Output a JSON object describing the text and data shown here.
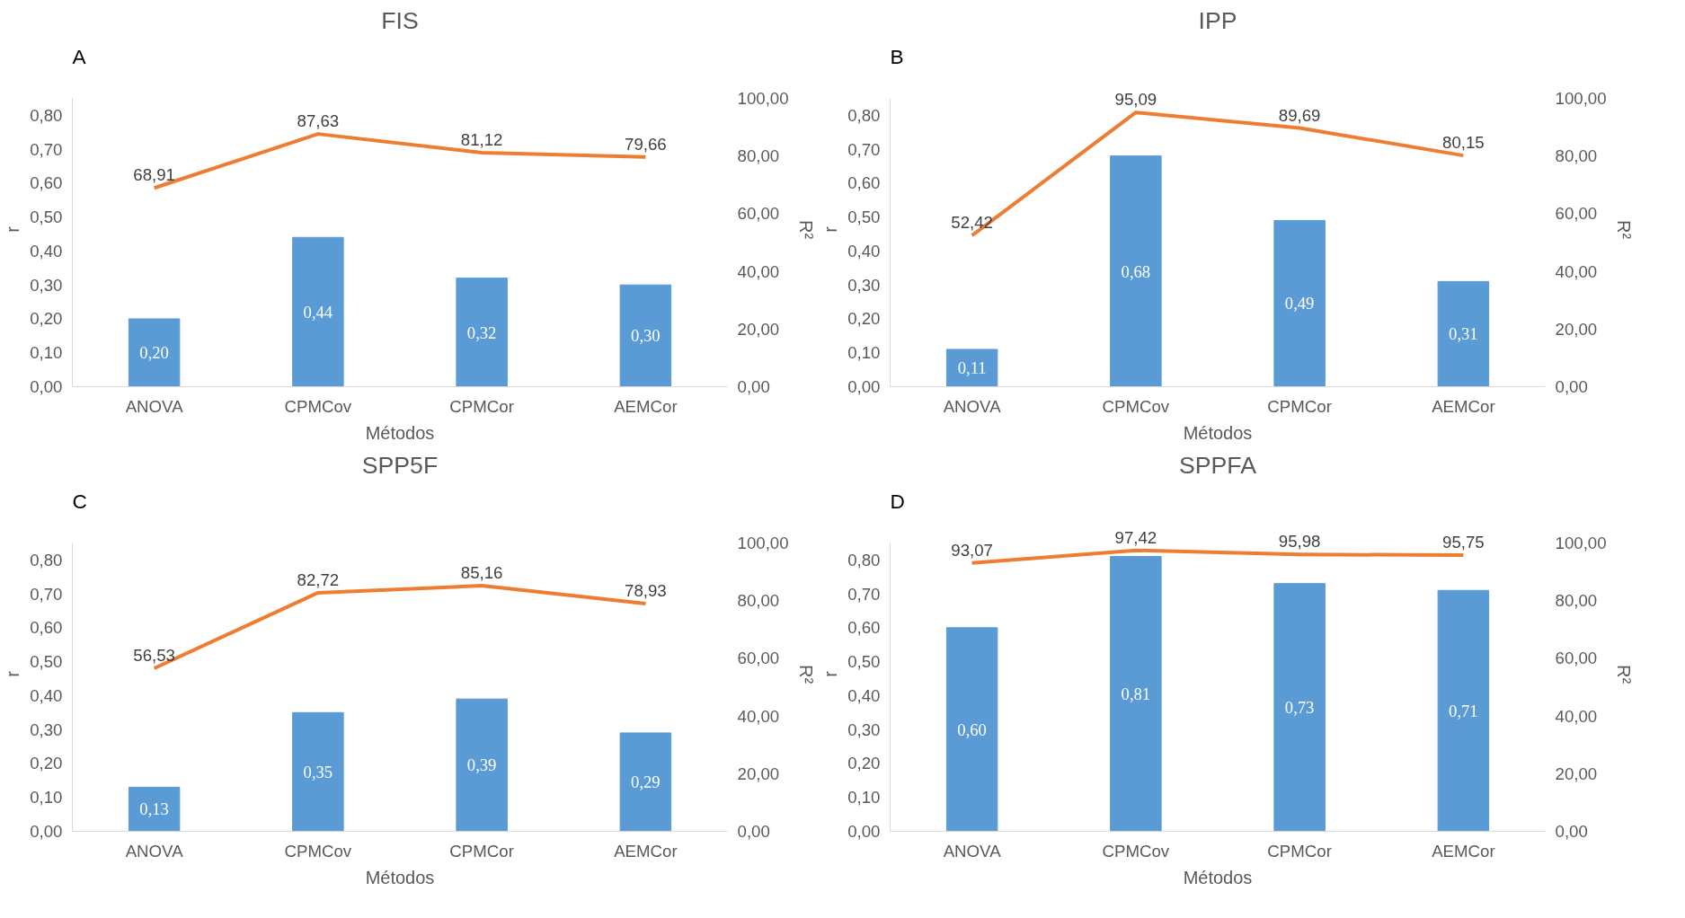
{
  "chart_data": [
    {
      "type": "bar",
      "title": "FIS",
      "annotations": [
        "A"
      ],
      "xlabel": "Métodos",
      "ylabel": "r",
      "y2label": "R²",
      "categories": [
        "ANOVA",
        "CPMCov",
        "CPMCor",
        "AEMCor"
      ],
      "ylim": [
        0,
        0.85
      ],
      "yticks": [
        {
          "value": 0,
          "label": "0,00"
        },
        {
          "value": 0.1,
          "label": "0,10"
        },
        {
          "value": 0.2,
          "label": "0,20"
        },
        {
          "value": 0.3,
          "label": "0,30"
        },
        {
          "value": 0.4,
          "label": "0,40"
        },
        {
          "value": 0.5,
          "label": "0,50"
        },
        {
          "value": 0.6,
          "label": "0,60"
        },
        {
          "value": 0.7,
          "label": "0,70"
        },
        {
          "value": 0.8,
          "label": "0,80"
        }
      ],
      "y2lim": [
        0,
        100
      ],
      "y2ticks": [
        {
          "value": 0,
          "label": "0,00"
        },
        {
          "value": 20,
          "label": "20,00"
        },
        {
          "value": 40,
          "label": "40,00"
        },
        {
          "value": 60,
          "label": "60,00"
        },
        {
          "value": 80,
          "label": "80,00"
        },
        {
          "value": 100,
          "label": "100,00"
        }
      ],
      "grid": false,
      "series": [
        {
          "color": "#5b9bd5",
          "values": [
            0.2,
            0.44,
            0.32,
            0.3
          ],
          "value_labels": [
            "0,20",
            "0,44",
            "0,32",
            "0,30"
          ]
        },
        {
          "type": "line",
          "axis": "y2",
          "color": "#ed7d31",
          "values": [
            68.91,
            87.63,
            81.12,
            79.66
          ],
          "value_labels": [
            "68,91",
            "87,63",
            "81,12",
            "79,66"
          ]
        }
      ]
    },
    {
      "type": "bar",
      "title": "IPP",
      "annotations": [
        "B"
      ],
      "xlabel": "Métodos",
      "ylabel": "r",
      "y2label": "R²",
      "categories": [
        "ANOVA",
        "CPMCov",
        "CPMCor",
        "AEMCor"
      ],
      "ylim": [
        0,
        0.85
      ],
      "yticks": [
        {
          "value": 0,
          "label": "0,00"
        },
        {
          "value": 0.1,
          "label": "0,10"
        },
        {
          "value": 0.2,
          "label": "0,20"
        },
        {
          "value": 0.3,
          "label": "0,30"
        },
        {
          "value": 0.4,
          "label": "0,40"
        },
        {
          "value": 0.5,
          "label": "0,50"
        },
        {
          "value": 0.6,
          "label": "0,60"
        },
        {
          "value": 0.7,
          "label": "0,70"
        },
        {
          "value": 0.8,
          "label": "0,80"
        }
      ],
      "y2lim": [
        0,
        100
      ],
      "y2ticks": [
        {
          "value": 0,
          "label": "0,00"
        },
        {
          "value": 20,
          "label": "20,00"
        },
        {
          "value": 40,
          "label": "40,00"
        },
        {
          "value": 60,
          "label": "60,00"
        },
        {
          "value": 80,
          "label": "80,00"
        },
        {
          "value": 100,
          "label": "100,00"
        }
      ],
      "grid": false,
      "series": [
        {
          "color": "#5b9bd5",
          "values": [
            0.11,
            0.68,
            0.49,
            0.31
          ],
          "value_labels": [
            "0,11",
            "0,68",
            "0,49",
            "0,31"
          ]
        },
        {
          "type": "line",
          "axis": "y2",
          "color": "#ed7d31",
          "values": [
            52.42,
            95.09,
            89.69,
            80.15
          ],
          "value_labels": [
            "52,42",
            "95,09",
            "89,69",
            "80,15"
          ]
        }
      ]
    },
    {
      "type": "bar",
      "title": "SPP5F",
      "annotations": [
        "C"
      ],
      "xlabel": "Métodos",
      "ylabel": "r",
      "y2label": "R²",
      "categories": [
        "ANOVA",
        "CPMCov",
        "CPMCor",
        "AEMCor"
      ],
      "ylim": [
        0,
        0.85
      ],
      "yticks": [
        {
          "value": 0,
          "label": "0,00"
        },
        {
          "value": 0.1,
          "label": "0,10"
        },
        {
          "value": 0.2,
          "label": "0,20"
        },
        {
          "value": 0.3,
          "label": "0,30"
        },
        {
          "value": 0.4,
          "label": "0,40"
        },
        {
          "value": 0.5,
          "label": "0,50"
        },
        {
          "value": 0.6,
          "label": "0,60"
        },
        {
          "value": 0.7,
          "label": "0,70"
        },
        {
          "value": 0.8,
          "label": "0,80"
        }
      ],
      "y2lim": [
        0,
        100
      ],
      "y2ticks": [
        {
          "value": 0,
          "label": "0,00"
        },
        {
          "value": 20,
          "label": "20,00"
        },
        {
          "value": 40,
          "label": "40,00"
        },
        {
          "value": 60,
          "label": "60,00"
        },
        {
          "value": 80,
          "label": "80,00"
        },
        {
          "value": 100,
          "label": "100,00"
        }
      ],
      "grid": false,
      "series": [
        {
          "color": "#5b9bd5",
          "values": [
            0.13,
            0.35,
            0.39,
            0.29
          ],
          "value_labels": [
            "0,13",
            "0,35",
            "0,39",
            "0,29"
          ]
        },
        {
          "type": "line",
          "axis": "y2",
          "color": "#ed7d31",
          "values": [
            56.53,
            82.72,
            85.16,
            78.93
          ],
          "value_labels": [
            "56,53",
            "82,72",
            "85,16",
            "78,93"
          ]
        }
      ]
    },
    {
      "type": "bar",
      "title": "SPPFA",
      "annotations": [
        "D"
      ],
      "xlabel": "Métodos",
      "ylabel": "r",
      "y2label": "R²",
      "categories": [
        "ANOVA",
        "CPMCov",
        "CPMCor",
        "AEMCor"
      ],
      "ylim": [
        0,
        0.85
      ],
      "yticks": [
        {
          "value": 0,
          "label": "0,00"
        },
        {
          "value": 0.1,
          "label": "0,10"
        },
        {
          "value": 0.2,
          "label": "0,20"
        },
        {
          "value": 0.3,
          "label": "0,30"
        },
        {
          "value": 0.4,
          "label": "0,40"
        },
        {
          "value": 0.5,
          "label": "0,50"
        },
        {
          "value": 0.6,
          "label": "0,60"
        },
        {
          "value": 0.7,
          "label": "0,70"
        },
        {
          "value": 0.8,
          "label": "0,80"
        }
      ],
      "y2lim": [
        0,
        100
      ],
      "y2ticks": [
        {
          "value": 0,
          "label": "0,00"
        },
        {
          "value": 20,
          "label": "20,00"
        },
        {
          "value": 40,
          "label": "40,00"
        },
        {
          "value": 60,
          "label": "60,00"
        },
        {
          "value": 80,
          "label": "80,00"
        },
        {
          "value": 100,
          "label": "100,00"
        }
      ],
      "grid": false,
      "series": [
        {
          "color": "#5b9bd5",
          "values": [
            0.6,
            0.81,
            0.73,
            0.71
          ],
          "value_labels": [
            "0,60",
            "0,81",
            "0,73",
            "0,71"
          ]
        },
        {
          "type": "line",
          "axis": "y2",
          "color": "#ed7d31",
          "values": [
            93.07,
            97.42,
            95.98,
            95.75
          ],
          "value_labels": [
            "93,07",
            "97,42",
            "95,98",
            "95,75"
          ]
        }
      ]
    }
  ]
}
